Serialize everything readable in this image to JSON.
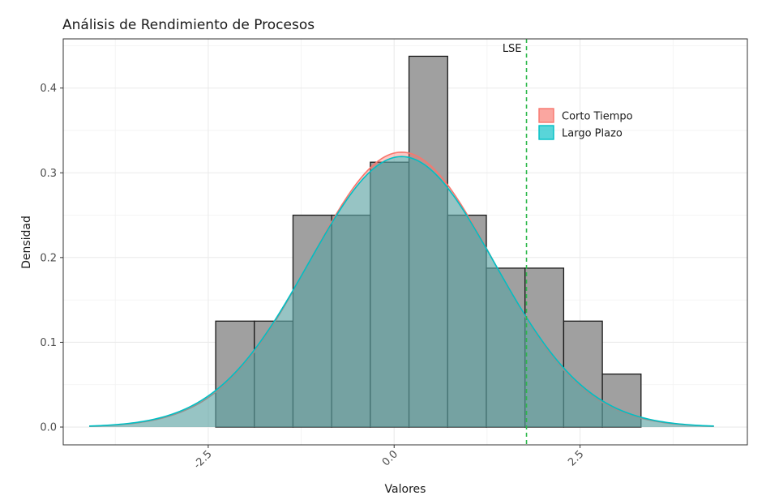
{
  "chart_data": {
    "type": "histogram_density",
    "title": "Análisis de Rendimiento de Procesos",
    "xlabel": "Valores",
    "ylabel": "Densidad",
    "xlim": [
      -4.45,
      4.75
    ],
    "ylim": [
      -0.021,
      0.458
    ],
    "x_ticks": [
      -2.5,
      0.0,
      2.5
    ],
    "x_tick_labels": [
      "-2.5",
      "0.0",
      "2.5"
    ],
    "y_ticks": [
      0.0,
      0.1,
      0.2,
      0.3,
      0.4
    ],
    "y_tick_labels": [
      "0.0",
      "0.1",
      "0.2",
      "0.3",
      "0.4"
    ],
    "x_tick_label_rotation": -45,
    "grid": true,
    "histogram": {
      "bin_width": 0.52,
      "bins": [
        {
          "start": -2.4,
          "end": -1.88,
          "density": 0.125
        },
        {
          "start": -1.88,
          "end": -1.36,
          "density": 0.125
        },
        {
          "start": -1.36,
          "end": -0.84,
          "density": 0.25
        },
        {
          "start": -0.84,
          "end": -0.32,
          "density": 0.25
        },
        {
          "start": -0.32,
          "end": 0.2,
          "density": 0.3125
        },
        {
          "start": 0.2,
          "end": 0.72,
          "density": 0.4375
        },
        {
          "start": 0.72,
          "end": 1.24,
          "density": 0.25
        },
        {
          "start": 1.24,
          "end": 1.76,
          "density": 0.1875
        },
        {
          "start": 1.76,
          "end": 2.28,
          "density": 0.1875
        },
        {
          "start": 2.28,
          "end": 2.8,
          "density": 0.125
        },
        {
          "start": 2.8,
          "end": 3.32,
          "density": 0.0625
        }
      ],
      "fill": "#a0a0a0",
      "stroke": "#1a1a1a"
    },
    "series": [
      {
        "name": "Corto Tiempo",
        "type": "normal_density",
        "mean": 0.1,
        "sd": 1.23,
        "color": "#f8766d"
      },
      {
        "name": "Largo Plazo",
        "type": "normal_density",
        "mean": 0.1,
        "sd": 1.25,
        "color": "#00bfc4"
      }
    ],
    "density_range": [
      -4.1,
      4.3
    ],
    "reference_line": {
      "label": "LSE",
      "x": 1.78,
      "color": "#2db84b",
      "style": "dashed"
    },
    "legend": {
      "position": "top-right",
      "entries": [
        "Corto Tiempo",
        "Largo Plazo"
      ]
    }
  }
}
